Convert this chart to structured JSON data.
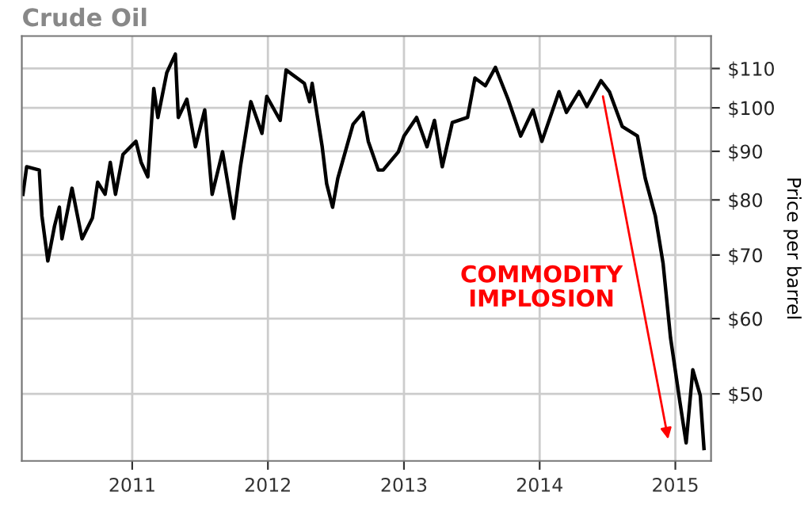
{
  "chart_data": {
    "type": "line",
    "title": "Crude Oil",
    "ylabel": "Price per barrel",
    "annotations": [
      "COMMODITY\nIMPLOSION"
    ],
    "x": [
      "2010-03-13",
      "2010-03-23",
      "2010-04-26",
      "2010-05-03",
      "2010-05-19",
      "2010-06-06",
      "2010-06-19",
      "2010-06-26",
      "2010-07-23",
      "2010-08-19",
      "2010-09-16",
      "2010-09-30",
      "2010-10-20",
      "2010-11-03",
      "2010-11-17",
      "2010-12-07",
      "2011-01-11",
      "2011-01-25",
      "2011-02-12",
      "2011-02-28",
      "2011-03-11",
      "2011-04-04",
      "2011-04-27",
      "2011-05-05",
      "2011-05-28",
      "2011-06-20",
      "2011-07-15",
      "2011-08-04",
      "2011-09-01",
      "2011-10-01",
      "2011-10-19",
      "2011-11-16",
      "2011-12-16",
      "2011-12-29",
      "2012-02-03",
      "2012-02-19",
      "2012-04-08",
      "2012-04-22",
      "2012-04-29",
      "2012-05-26",
      "2012-06-07",
      "2012-06-23",
      "2012-07-07",
      "2012-08-17",
      "2012-09-13",
      "2012-09-27",
      "2012-10-24",
      "2012-11-06",
      "2012-12-17",
      "2013-01-01",
      "2013-02-04",
      "2013-03-04",
      "2013-03-24",
      "2013-04-14",
      "2013-05-11",
      "2013-06-21",
      "2013-07-11",
      "2013-08-08",
      "2013-09-04",
      "2013-10-08",
      "2013-11-11",
      "2013-12-14",
      "2014-01-07",
      "2014-02-22",
      "2014-03-14",
      "2014-04-17",
      "2014-05-08",
      "2014-06-15",
      "2014-07-08",
      "2014-08-11",
      "2014-09-21",
      "2014-10-12",
      "2014-11-08",
      "2014-11-29",
      "2014-12-19",
      "2015-01-13",
      "2015-01-30",
      "2015-02-17",
      "2015-03-09",
      "2015-03-19"
    ],
    "series": [
      {
        "color": "#000000",
        "values": [
          81.1,
          86.7,
          86,
          77,
          69,
          75.1,
          78.6,
          72.8,
          82.3,
          72.8,
          76.6,
          83.5,
          81.1,
          87.6,
          81.1,
          89.3,
          92.2,
          87.6,
          84.6,
          104.8,
          97.7,
          108.9,
          113.9,
          97.7,
          102.1,
          91,
          99.5,
          81.1,
          89.9,
          76.5,
          86.7,
          101.5,
          94,
          102.8,
          97,
          109.6,
          106.1,
          101.5,
          106.1,
          91,
          83.2,
          78.6,
          84.3,
          96.1,
          98.9,
          92.2,
          86,
          86,
          89.9,
          93.4,
          97.7,
          91,
          97,
          86.7,
          96.5,
          97.7,
          107.5,
          105.5,
          110.3,
          102.1,
          93.4,
          99.5,
          92.2,
          104,
          98.9,
          104,
          100.3,
          106.8,
          103.9,
          95.6,
          93.4,
          84.3,
          77,
          68.6,
          57.3,
          49.1,
          44.4,
          53,
          49.8,
          43.8
        ]
      }
    ],
    "xlim": [
      "2010-03-10",
      "2015-04-07"
    ],
    "xticks": [
      {
        "value": "2011-01-01",
        "label": "2011"
      },
      {
        "value": "2012-01-01",
        "label": "2012"
      },
      {
        "value": "2013-01-01",
        "label": "2013"
      },
      {
        "value": "2014-01-01",
        "label": "2014"
      },
      {
        "value": "2015-01-01",
        "label": "2015"
      }
    ],
    "log": true,
    "ylim": [
      42.5,
      119
    ],
    "yticks": [
      {
        "value": 50,
        "label": "$50"
      },
      {
        "value": 60,
        "label": "$60"
      },
      {
        "value": 70,
        "label": "$70"
      },
      {
        "value": 80,
        "label": "$80"
      },
      {
        "value": 90,
        "label": "$90"
      },
      {
        "value": 100,
        "label": "$100"
      },
      {
        "value": 110,
        "label": "$110"
      }
    ],
    "grid": true,
    "legend": false
  }
}
